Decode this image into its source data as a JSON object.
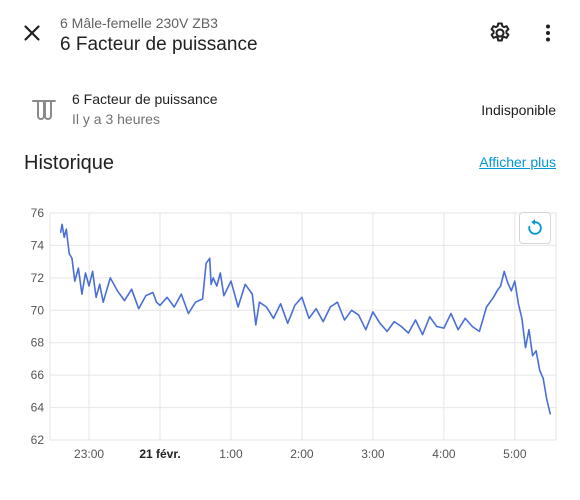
{
  "header": {
    "subtitle": "6 Mâle-femelle 230V ZB3",
    "title": "6 Facteur de puissance",
    "close_icon": "close-icon",
    "settings_icon": "gear-icon",
    "more_icon": "more-vertical-icon"
  },
  "entity": {
    "icon": "transmission-tower-icon",
    "name": "6 Facteur de puissance",
    "last_changed": "Il y a 3 heures",
    "state": "Indisponible"
  },
  "history": {
    "title": "Historique",
    "show_more": "Afficher plus",
    "reset_zoom_icon": "reset-zoom-icon"
  },
  "colors": {
    "line": "#4a6fd6",
    "accent": "#0396d6",
    "grid": "#e6e6e6"
  },
  "chart_data": {
    "type": "line",
    "ylim": [
      62,
      76
    ],
    "y_ticks": [
      76,
      74,
      72,
      70,
      68,
      66,
      64,
      62
    ],
    "x_ticks": [
      {
        "label": "23:00",
        "hour": 23,
        "bold": false
      },
      {
        "label": "21 févr.",
        "hour": 24,
        "bold": true
      },
      {
        "label": "1:00",
        "hour": 25,
        "bold": false
      },
      {
        "label": "2:00",
        "hour": 26,
        "bold": false
      },
      {
        "label": "3:00",
        "hour": 27,
        "bold": false
      },
      {
        "label": "4:00",
        "hour": 28,
        "bold": false
      },
      {
        "label": "5:00",
        "hour": 29,
        "bold": false
      }
    ],
    "x_range_hours": [
      22.45,
      29.58
    ],
    "series": [
      {
        "hours": [
          22.6,
          22.62,
          22.65,
          22.68,
          22.72,
          22.76,
          22.8,
          22.85,
          22.9,
          22.95,
          23.0,
          23.05,
          23.1,
          23.15,
          23.2,
          23.3,
          23.4,
          23.5,
          23.6,
          23.7,
          23.8,
          23.9,
          23.95,
          24.0,
          24.1,
          24.2,
          24.3,
          24.4,
          24.5,
          24.6,
          24.65,
          24.7,
          24.72,
          24.75,
          24.8,
          24.85,
          24.9,
          25.0,
          25.1,
          25.2,
          25.3,
          25.35,
          25.4,
          25.5,
          25.6,
          25.7,
          25.8,
          25.9,
          26.0,
          26.1,
          26.2,
          26.3,
          26.4,
          26.5,
          26.6,
          26.7,
          26.8,
          26.9,
          27.0,
          27.1,
          27.2,
          27.3,
          27.4,
          27.5,
          27.6,
          27.7,
          27.8,
          27.9,
          28.0,
          28.1,
          28.2,
          28.3,
          28.4,
          28.5,
          28.6,
          28.7,
          28.75,
          28.8,
          28.85,
          28.9,
          28.95,
          29.0,
          29.05,
          29.1,
          29.15,
          29.2,
          29.25,
          29.3,
          29.35,
          29.4,
          29.45,
          29.5
        ],
        "values": [
          74.8,
          75.3,
          74.5,
          75.0,
          73.5,
          73.2,
          71.8,
          72.6,
          71.0,
          72.3,
          71.5,
          72.4,
          70.8,
          71.6,
          70.5,
          72.0,
          71.2,
          70.6,
          71.3,
          70.1,
          70.9,
          71.1,
          70.5,
          70.3,
          70.8,
          70.2,
          71.0,
          69.8,
          70.5,
          70.7,
          72.9,
          73.2,
          71.6,
          72.0,
          71.5,
          72.3,
          70.9,
          71.8,
          70.2,
          71.6,
          71.0,
          69.1,
          70.5,
          70.2,
          69.5,
          70.4,
          69.2,
          70.3,
          70.8,
          69.5,
          70.1,
          69.3,
          70.2,
          70.5,
          69.4,
          70.0,
          69.7,
          68.8,
          69.9,
          69.2,
          68.7,
          69.3,
          69.0,
          68.6,
          69.4,
          68.5,
          69.6,
          69.0,
          68.9,
          69.8,
          68.8,
          69.5,
          69.0,
          68.7,
          70.2,
          70.8,
          71.2,
          71.5,
          72.4,
          71.7,
          71.2,
          71.8,
          70.4,
          69.5,
          67.7,
          68.8,
          67.2,
          67.5,
          66.3,
          65.8,
          64.5,
          63.6
        ]
      }
    ]
  }
}
